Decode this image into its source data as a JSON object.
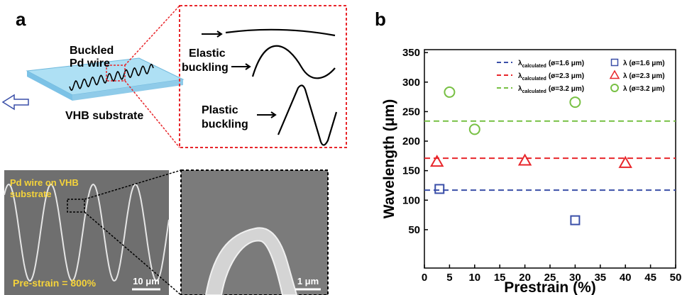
{
  "panel_a": {
    "label": "a",
    "wire_label": [
      "Buckled",
      "Pd wire"
    ],
    "substrate_label": "VHB substrate",
    "elastic_label": [
      "Elastic",
      "buckling"
    ],
    "plastic_label": [
      "Plastic",
      "buckling"
    ],
    "micrograph_label": [
      "Pd wire on VHB",
      "substrate"
    ],
    "prestrain_label": "Pre-strain = 800%",
    "scale_left": "10 μm",
    "scale_right": "1 μm"
  },
  "chart_data": {
    "type": "scatter",
    "panel_label": "b",
    "x_label": "Prestrain (%)",
    "y_label": "Wavelength (μm)",
    "xlim": [
      0,
      50
    ],
    "xticks": [
      0,
      5,
      10,
      15,
      20,
      25,
      30,
      35,
      40,
      45,
      50
    ],
    "ylim": [
      -15,
      355
    ],
    "yticks": [
      50,
      100,
      150,
      200,
      250,
      300,
      350
    ],
    "series": [
      {
        "name": "λ",
        "name_sub": "calculated",
        "name_rest": "(ø=1.6 μm)",
        "color": "#3a4fa8",
        "style": "dashed",
        "x": [
          0,
          50
        ],
        "values": [
          117,
          117
        ]
      },
      {
        "name": "λ",
        "name_sub": "calculated",
        "name_rest": "(ø=2.3 μm)",
        "color": "#e8262b",
        "style": "dashed",
        "x": [
          0,
          50
        ],
        "values": [
          171,
          171
        ]
      },
      {
        "name": "λ",
        "name_sub": "calculated",
        "name_rest": "(ø=3.2 μm)",
        "color": "#77c043",
        "style": "dashed",
        "x": [
          0,
          50
        ],
        "values": [
          234,
          234
        ]
      },
      {
        "name": "λ (ø=1.6 μm)",
        "color": "#3a4fa8",
        "marker": "square",
        "x": [
          3,
          30
        ],
        "values": [
          119,
          66
        ]
      },
      {
        "name": "λ (ø=2.3 μm)",
        "color": "#e8262b",
        "marker": "triangle",
        "x": [
          2.5,
          20,
          40
        ],
        "values": [
          165,
          167,
          163
        ]
      },
      {
        "name": "λ (ø=3.2 μm)",
        "color": "#77c043",
        "marker": "circle",
        "x": [
          5,
          10,
          30
        ],
        "values": [
          283,
          220,
          266
        ]
      }
    ]
  }
}
